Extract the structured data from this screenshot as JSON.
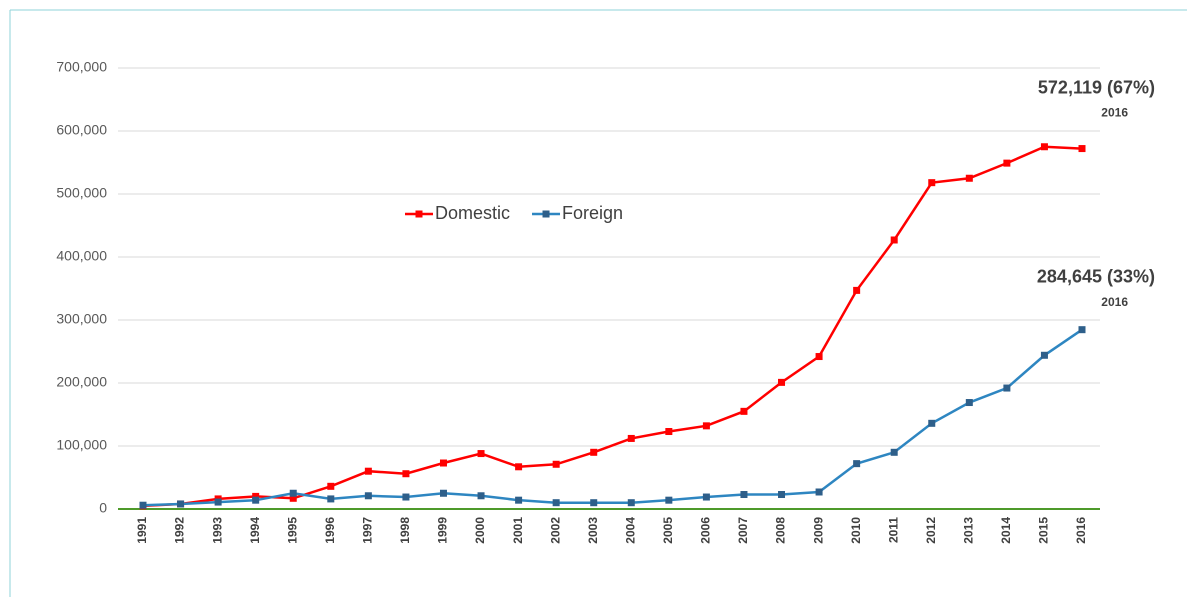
{
  "chart_data": {
    "type": "line",
    "categories": [
      "1991",
      "1992",
      "1993",
      "1994",
      "1995",
      "1996",
      "1997",
      "1998",
      "1999",
      "2000",
      "2001",
      "2002",
      "2003",
      "2004",
      "2005",
      "2006",
      "2007",
      "2008",
      "2009",
      "2010",
      "2011",
      "2012",
      "2013",
      "2014",
      "2015",
      "2016"
    ],
    "series": [
      {
        "name": "Domestic",
        "color": "#ff0000",
        "values": [
          5000,
          8000,
          16000,
          20000,
          17000,
          36000,
          60000,
          56000,
          73000,
          88000,
          67000,
          71000,
          90000,
          112000,
          123000,
          132000,
          155000,
          201000,
          242000,
          347000,
          427000,
          518000,
          525000,
          549000,
          575000,
          572119
        ]
      },
      {
        "name": "Foreign",
        "color": "#2e86c1",
        "marker_color": "#2e5f8a",
        "values": [
          6000,
          8000,
          11000,
          14000,
          25000,
          16000,
          21000,
          19000,
          25000,
          21000,
          14000,
          10000,
          10000,
          10000,
          14000,
          19000,
          23000,
          23000,
          27000,
          72000,
          90000,
          136000,
          169000,
          192000,
          244000,
          284645
        ]
      }
    ],
    "ylim": [
      0,
      700000
    ],
    "yticks": [
      0,
      {
        "value": 100000,
        "label": "100,000"
      },
      {
        "value": 200000,
        "label": "200,000"
      },
      {
        "value": 300000,
        "label": "300,000"
      },
      {
        "value": 400000,
        "label": "400,000"
      },
      {
        "value": 500000,
        "label": "500,000"
      },
      {
        "value": 600000,
        "label": "600,000"
      },
      {
        "value": 700000,
        "label": "700,000"
      }
    ],
    "grid": true,
    "baseline_color": "#4e9a2a",
    "legend": "center",
    "annotations": [
      {
        "text": "572,119 (67%)",
        "sub": "2016",
        "series": 0
      },
      {
        "text": "284,645 (33%)",
        "sub": "2016",
        "series": 1
      }
    ]
  }
}
